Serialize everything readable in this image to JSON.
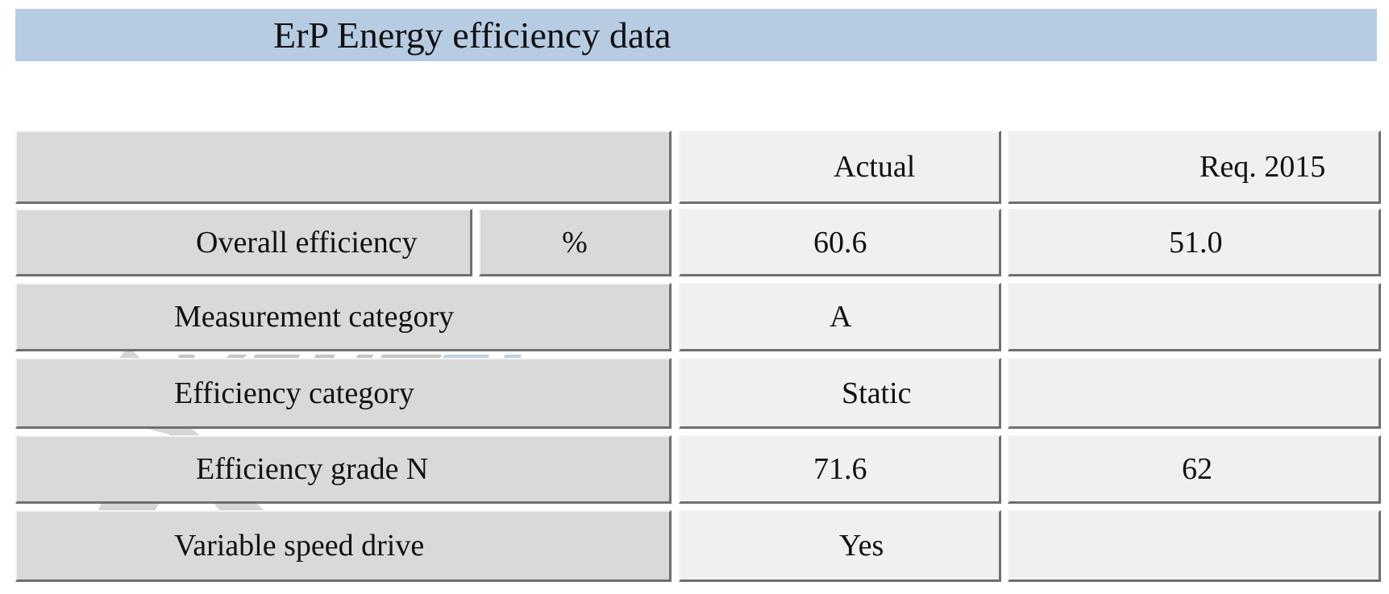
{
  "title": "ErP Energy efficiency data",
  "table": {
    "headers": {
      "actual": "Actual",
      "req": "Req. 2015"
    },
    "rows": [
      {
        "label": "Overall efficiency",
        "unit": "%",
        "actual": "60.6",
        "req": "51.0"
      },
      {
        "label": "Measurement category",
        "actual": "A",
        "req": ""
      },
      {
        "label": "Efficiency category",
        "actual": "Static",
        "req": ""
      },
      {
        "label": "Efficiency grade N",
        "actual": "71.6",
        "req": "62"
      },
      {
        "label": "Variable speed drive",
        "actual": "Yes",
        "req": ""
      }
    ]
  },
  "watermark": {
    "text": "VENTEL",
    "gray": "#b3b3b3",
    "blue": "#a9c4dc"
  }
}
